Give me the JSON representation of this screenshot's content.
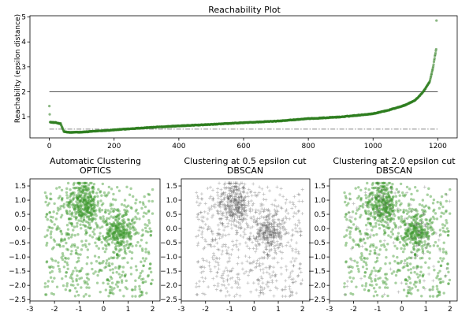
{
  "chart_data": [
    {
      "type": "scatter",
      "title": "Reachability Plot",
      "xlabel": "",
      "ylabel": "Reachability (epsilon distance)",
      "xlim": [
        -60,
        1260
      ],
      "ylim": [
        0.15,
        5.05
      ],
      "xticks": [
        0,
        200,
        400,
        600,
        800,
        1000,
        1200
      ],
      "yticks": [
        1,
        2,
        3,
        4,
        5
      ],
      "grid": false,
      "series": [
        {
          "color": "#2e7d1f",
          "style": "points",
          "x": [],
          "y": []
        }
      ],
      "hlines": [
        {
          "y": 2.0,
          "style": "solid",
          "color": "#555555",
          "xmin": 0,
          "xmax": 1200
        },
        {
          "y": 0.5,
          "style": "dashdot",
          "color": "#8a8a8a",
          "xmin": 0,
          "xmax": 1200
        }
      ],
      "curve_profile": [
        [
          0,
          1.44
        ],
        [
          2,
          0.78
        ],
        [
          20,
          0.76
        ],
        [
          35,
          0.72
        ],
        [
          40,
          0.55
        ],
        [
          45,
          0.4
        ],
        [
          60,
          0.37
        ],
        [
          100,
          0.38
        ],
        [
          150,
          0.43
        ],
        [
          200,
          0.47
        ],
        [
          300,
          0.56
        ],
        [
          400,
          0.63
        ],
        [
          500,
          0.69
        ],
        [
          600,
          0.76
        ],
        [
          700,
          0.82
        ],
        [
          800,
          0.92
        ],
        [
          900,
          0.99
        ],
        [
          1000,
          1.12
        ],
        [
          1050,
          1.27
        ],
        [
          1100,
          1.47
        ],
        [
          1130,
          1.66
        ],
        [
          1150,
          1.92
        ],
        [
          1160,
          2.1
        ],
        [
          1175,
          2.4
        ],
        [
          1185,
          2.95
        ],
        [
          1192,
          3.5
        ],
        [
          1195,
          3.7
        ],
        [
          1196,
          4.85
        ]
      ]
    },
    {
      "type": "scatter",
      "title": "Automatic Clustering",
      "subtitle": "OPTICS",
      "xlabel": "",
      "ylabel": "",
      "xlim": [
        -3,
        2.3
      ],
      "ylim": [
        -2.55,
        1.75
      ],
      "xticks": [
        -3,
        -2,
        -1,
        0,
        1,
        2
      ],
      "yticks": [
        1.5,
        1.0,
        0.5,
        0.0,
        -0.5,
        -1.0,
        -1.5,
        -2.0,
        -2.5
      ],
      "grid": false,
      "series": [
        {
          "color": "#3d9a2e",
          "marker": "dot",
          "x": [],
          "y": []
        }
      ]
    },
    {
      "type": "scatter",
      "title": "Clustering at 0.5 epsilon cut",
      "subtitle": "DBSCAN",
      "xlabel": "",
      "ylabel": "",
      "xlim": [
        -3,
        2.3
      ],
      "ylim": [
        -2.55,
        1.75
      ],
      "xticks": [
        -3,
        -2,
        -1,
        0,
        1,
        2
      ],
      "yticks": [
        1.5,
        1.0,
        0.5,
        0.0,
        -0.5,
        -1.0,
        -1.5,
        -2.0,
        -2.5
      ],
      "grid": false,
      "series": [
        {
          "color": "#555555",
          "marker": "plus",
          "x": [],
          "y": []
        }
      ]
    },
    {
      "type": "scatter",
      "title": "Clustering at 2.0 epsilon cut",
      "subtitle": "DBSCAN",
      "xlabel": "",
      "ylabel": "",
      "xlim": [
        -3,
        2.3
      ],
      "ylim": [
        -2.55,
        1.75
      ],
      "xticks": [
        -3,
        -2,
        -1,
        0,
        1,
        2
      ],
      "yticks": [
        1.5,
        1.0,
        0.5,
        0.0,
        -0.5,
        -1.0,
        -1.5,
        -2.0,
        -2.5
      ],
      "grid": false,
      "series": [
        {
          "color": "#3d9a2e",
          "marker": "dot",
          "x": [],
          "y": []
        },
        {
          "color": "#555555",
          "marker": "plus",
          "x": [],
          "y": []
        }
      ]
    }
  ],
  "labels": {
    "top_title": "Reachability Plot",
    "top_ylabel": "Reachability (epsilon distance)",
    "bl_title1": "Automatic Clustering",
    "bl_title2": "OPTICS",
    "bm_title1": "Clustering at 0.5 epsilon cut",
    "bm_title2": "DBSCAN",
    "br_title1": "Clustering at 2.0 epsilon cut",
    "br_title2": "DBSCAN"
  }
}
